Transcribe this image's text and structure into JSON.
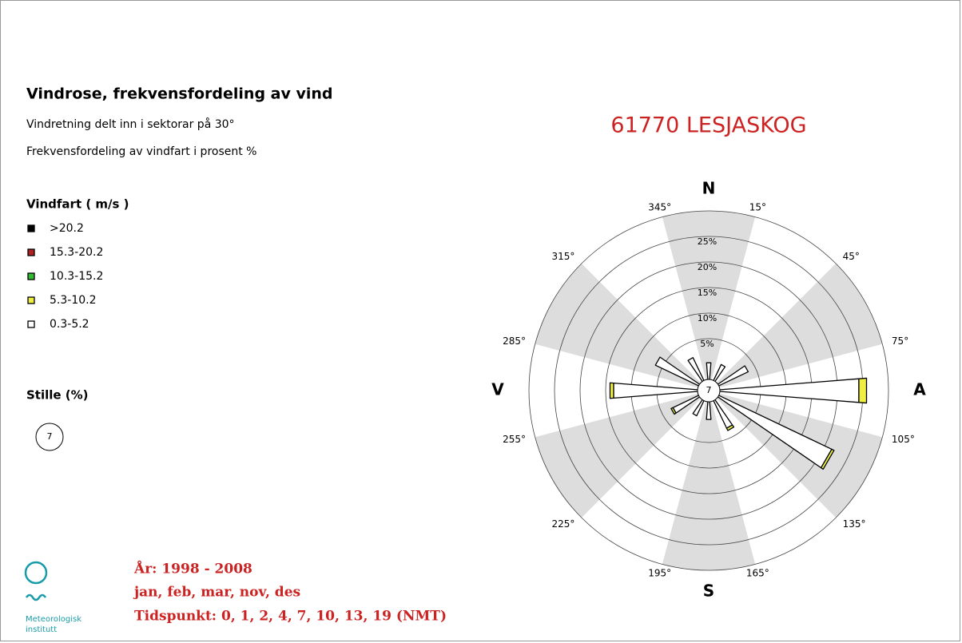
{
  "header": {
    "title": "Vindrose, frekvensfordeling av vind",
    "lines": [
      "Vindretning delt inn i sektorar på 30°",
      "Frekvensfordeling av vindfart i prosent %"
    ]
  },
  "legend_title": "Vindfart ( m/s )",
  "calm_title": "Stille (%)",
  "footer": [
    "År: 1998 - 2008",
    "jan, feb, mar, nov, des",
    "Tidspunkt: 0, 1, 2, 4, 7, 10, 13, 19 (NMT)"
  ],
  "logo": [
    "Meteorologisk",
    "institutt"
  ],
  "chart_data": {
    "type": "windrose",
    "title": "61770 LESJASKOG",
    "compass": [
      "N",
      "A",
      "S",
      "V"
    ],
    "sector_labels": [
      "15°",
      "45°",
      "75°",
      "105°",
      "135°",
      "165°",
      "195°",
      "225°",
      "255°",
      "285°",
      "315°",
      "345°"
    ],
    "calm": 7,
    "rlim": [
      0,
      30
    ],
    "rticks": [
      {
        "value": 5,
        "label": "5%"
      },
      {
        "value": 10,
        "label": "10%"
      },
      {
        "value": 15,
        "label": "15%"
      },
      {
        "value": 20,
        "label": "20%"
      },
      {
        "value": 25,
        "label": "25%"
      }
    ],
    "series": [
      {
        "name": "0.3-5.2",
        "color": "#ffffff",
        "values": [
          0.3,
          0.5,
          3.4,
          24.3,
          21.5,
          3.0,
          0.5,
          0.3,
          2.6,
          13.5,
          6.4,
          2.0
        ]
      },
      {
        "name": "5.3-10.2",
        "color": "#eeee44",
        "values": [
          0,
          0,
          0,
          1.5,
          0.5,
          0.5,
          0,
          0,
          0.4,
          0.7,
          0,
          0
        ]
      },
      {
        "name": "10.3-15.2",
        "color": "#33bb33",
        "values": [
          0,
          0,
          0,
          0,
          0,
          0,
          0,
          0,
          0,
          0,
          0,
          0
        ]
      },
      {
        "name": "15.3-20.2",
        "color": "#b02222",
        "values": [
          0,
          0,
          0,
          0,
          0,
          0,
          0,
          0,
          0,
          0,
          0,
          0
        ]
      },
      {
        "name": ">20.2",
        "color": "#000000",
        "values": [
          0,
          0,
          0,
          0,
          0,
          0,
          0,
          0,
          0,
          0,
          0,
          0
        ]
      }
    ]
  }
}
